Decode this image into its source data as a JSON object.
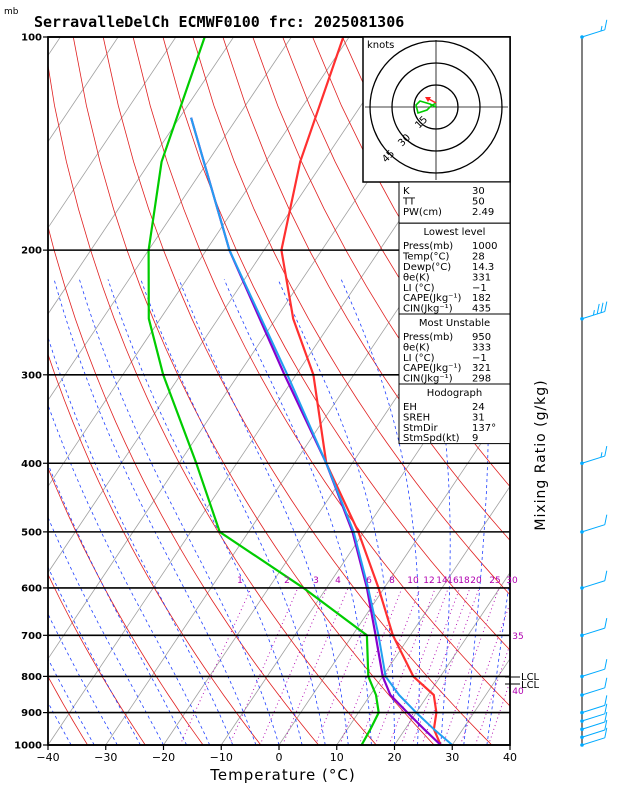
{
  "title": "SerravalleDelCh ECMWF0100  frc: 2025081306",
  "units": {
    "pressure_label": "mb",
    "x_axis_label": "Temperature (°C)",
    "right_axis_label": "Mixing Ratio (g/kg)",
    "hodograph_units": "knots"
  },
  "pressure_ticks": [
    1000,
    900,
    800,
    700,
    600,
    500,
    400,
    300,
    200,
    100
  ],
  "pressure_tick_labels": [
    "1000",
    "900",
    "800",
    "700",
    "600",
    "500",
    "400",
    "300",
    "200",
    "100"
  ],
  "temperature_ticks": [
    -40,
    -30,
    -20,
    -10,
    0,
    10,
    20,
    30,
    40
  ],
  "temperature_tick_labels": [
    "−40",
    "−30",
    "−20",
    "−10",
    "0",
    "10",
    "20",
    "30",
    "40"
  ],
  "mixing_ratio_labels": [
    "1",
    "2",
    "3",
    "4",
    "6",
    "8",
    "10",
    "12",
    "14",
    "16",
    "18",
    "20",
    "25",
    "30",
    "35",
    "40"
  ],
  "lcl_labels": [
    "LCL",
    "LCL"
  ],
  "hodograph": {
    "ring_labels": [
      "15",
      "30",
      "45"
    ]
  },
  "indices": {
    "rows": [
      [
        "K",
        "30"
      ],
      [
        "TT",
        "50"
      ],
      [
        "PW(cm)",
        "2.49"
      ]
    ]
  },
  "lowest_level": {
    "header": "Lowest level",
    "rows": [
      [
        "Press(mb)",
        "1000"
      ],
      [
        "Temp(°C)",
        "28"
      ],
      [
        "Dewp(°C)",
        "14.3"
      ],
      [
        "θe(K)",
        "331"
      ],
      [
        "LI (°C)",
        "−1"
      ],
      [
        "CAPE(Jkg⁻¹)",
        "182"
      ],
      [
        "CIN(Jkg⁻¹)",
        "435"
      ]
    ]
  },
  "most_unstable": {
    "header": "Most Unstable",
    "rows": [
      [
        "Press(mb)",
        "950"
      ],
      [
        "θe(K)",
        "333"
      ],
      [
        "LI (°C)",
        "−1"
      ],
      [
        "CAPE(Jkg⁻¹)",
        "321"
      ],
      [
        "CIN(Jkg⁻¹)",
        "298"
      ]
    ]
  },
  "hodograph_params": {
    "header": "Hodograph",
    "rows": [
      [
        "EH",
        "24"
      ],
      [
        "SREH",
        "31"
      ],
      [
        "StmDir",
        "137°"
      ],
      [
        "StmSpd(kt)",
        "9"
      ]
    ]
  },
  "colors": {
    "temperature": "#ff3030",
    "dewpoint": "#00cc00",
    "parcel": "#8800cc",
    "virtual_parcel": "#22a0f0",
    "dry_adiabat": "#e02020",
    "moist_adiabat": "#2040ff",
    "isotherm": "#a0a0a0",
    "mixing_ratio": "#b000b0",
    "wind_barb": "#00aaff"
  },
  "chart_data": {
    "type": "line",
    "chart_kind": "skew-T log-P thermodynamic diagram",
    "xlim": [
      -40,
      40
    ],
    "ylim_pressure": [
      1000,
      100
    ],
    "y_scale": "log",
    "series": [
      {
        "name": "Temp",
        "pressure": [
          1000,
          950,
          900,
          850,
          800,
          700,
          600,
          500,
          400,
          300,
          250,
          200,
          150,
          100
        ],
        "values": [
          28,
          25,
          23.5,
          21,
          15.3,
          7,
          -1,
          -11,
          -24.5,
          -37,
          -47,
          -57,
          -64,
          -71
        ]
      },
      {
        "name": "Dewp",
        "pressure": [
          1000,
          950,
          900,
          850,
          800,
          700,
          600,
          500,
          400,
          300,
          250,
          200,
          150,
          100
        ],
        "values": [
          14.3,
          14,
          13.5,
          11,
          7.5,
          2.5,
          -14,
          -35,
          -47,
          -63,
          -72,
          -80,
          -88,
          -95
        ]
      },
      {
        "name": "Parcel",
        "pressure": [
          1000,
          950,
          900,
          850,
          800,
          700,
          600,
          500,
          400,
          300,
          200,
          130
        ],
        "values": [
          28,
          23.3,
          18.5,
          13.5,
          10,
          4,
          -3,
          -12,
          -24.5,
          -42,
          -66,
          -88
        ]
      },
      {
        "name": "Parcel Tv",
        "pressure": [
          1000,
          950,
          900,
          850,
          800,
          700,
          600,
          500,
          400,
          300,
          200,
          130
        ],
        "values": [
          30,
          25,
          20,
          15,
          10.5,
          4.5,
          -2.8,
          -11.8,
          -24.5,
          -41.5,
          -66,
          -88
        ]
      }
    ],
    "wind_barbs": [
      {
        "pressure": 1000,
        "speed_kt": 10
      },
      {
        "pressure": 975,
        "speed_kt": 10
      },
      {
        "pressure": 950,
        "speed_kt": 10
      },
      {
        "pressure": 925,
        "speed_kt": 10
      },
      {
        "pressure": 900,
        "speed_kt": 10
      },
      {
        "pressure": 850,
        "speed_kt": 10
      },
      {
        "pressure": 800,
        "speed_kt": 10
      },
      {
        "pressure": 700,
        "speed_kt": 10
      },
      {
        "pressure": 600,
        "speed_kt": 10
      },
      {
        "pressure": 500,
        "speed_kt": 10
      },
      {
        "pressure": 400,
        "speed_kt": 15
      },
      {
        "pressure": 250,
        "speed_kt": 35
      },
      {
        "pressure": 100,
        "speed_kt": 15
      }
    ],
    "mixing_ratio_lines": [
      1,
      2,
      3,
      4,
      6,
      8,
      10,
      12,
      14,
      16,
      18,
      20,
      25,
      30,
      35,
      40
    ]
  }
}
